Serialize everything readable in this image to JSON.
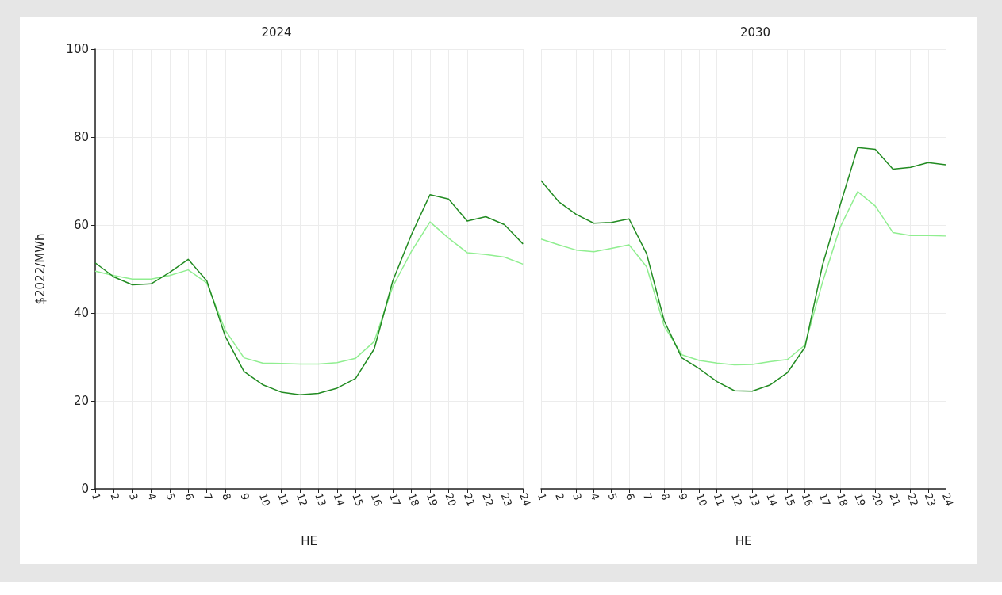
{
  "chart_data": [
    {
      "type": "line",
      "title": "2024",
      "xlabel": "HE",
      "ylabel": "$2022/MWh",
      "categories": [
        "1",
        "2",
        "3",
        "4",
        "5",
        "6",
        "7",
        "8",
        "9",
        "10",
        "11",
        "12",
        "13",
        "14",
        "15",
        "16",
        "17",
        "18",
        "19",
        "20",
        "21",
        "22",
        "23",
        "24"
      ],
      "series": [
        {
          "color": "#90ee90",
          "values": [
            49.5,
            48.5,
            47.7,
            47.7,
            48.5,
            49.8,
            46.8,
            36,
            29.8,
            28.6,
            28.5,
            28.4,
            28.4,
            28.7,
            29.7,
            33.5,
            46,
            54,
            60.7,
            57,
            53.7,
            53.3,
            52.7,
            51.1
          ]
        },
        {
          "color": "#228b22",
          "values": [
            51.4,
            48.2,
            46.4,
            46.6,
            49.2,
            52.2,
            47.3,
            34.6,
            26.7,
            23.7,
            22,
            21.4,
            21.7,
            22.9,
            25.1,
            31.8,
            47.3,
            57.8,
            66.9,
            65.9,
            60.9,
            61.9,
            60.1,
            55.7
          ]
        }
      ],
      "ylim": [
        0,
        100
      ],
      "yticks": [
        0,
        20,
        40,
        60,
        80,
        100
      ],
      "grid": true,
      "marker": "none",
      "line_style": "solid"
    },
    {
      "type": "line",
      "title": "2030",
      "xlabel": "HE",
      "categories": [
        "1",
        "2",
        "3",
        "4",
        "5",
        "6",
        "7",
        "8",
        "9",
        "10",
        "11",
        "12",
        "13",
        "14",
        "15",
        "16",
        "17",
        "18",
        "19",
        "20",
        "21",
        "22",
        "23",
        "24"
      ],
      "series": [
        {
          "color": "#90ee90",
          "values": [
            56.8,
            55.5,
            54.3,
            53.9,
            54.7,
            55.5,
            50.5,
            37,
            30.5,
            29.2,
            28.6,
            28.2,
            28.3,
            28.9,
            29.4,
            32.7,
            47,
            59.5,
            67.6,
            64.3,
            58.3,
            57.6,
            57.6,
            57.5
          ]
        },
        {
          "color": "#228b22",
          "values": [
            70.1,
            65.3,
            62.4,
            60.4,
            60.6,
            61.4,
            53.5,
            38.2,
            29.8,
            27.3,
            24.4,
            22.3,
            22.2,
            23.6,
            26.4,
            32.2,
            50.9,
            64.5,
            77.6,
            77.2,
            72.7,
            73.1,
            74.2,
            73.7
          ]
        }
      ],
      "ylim": [
        0,
        100
      ],
      "yticks": [
        0,
        20,
        40,
        60,
        80,
        100
      ],
      "grid": true,
      "marker": "none",
      "line_style": "solid",
      "tick_labels": "x"
    }
  ]
}
